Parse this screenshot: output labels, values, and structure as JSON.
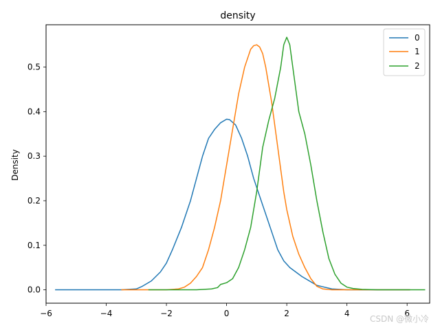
{
  "watermark": "CSDN @微小冷",
  "chart_data": {
    "type": "line",
    "title": "density",
    "xlabel": "",
    "ylabel": "Density",
    "xlim": [
      -6.0,
      6.75
    ],
    "ylim": [
      -0.03,
      0.595
    ],
    "xticks": [
      -6,
      -4,
      -2,
      0,
      2,
      4,
      6
    ],
    "yticks": [
      0.0,
      0.1,
      0.2,
      0.3,
      0.4,
      0.5
    ],
    "grid": false,
    "legend_position": "top-right",
    "series": [
      {
        "name": "0",
        "color": "#1f77b4",
        "x": [
          -5.7,
          -4.0,
          -3.5,
          -3.0,
          -2.8,
          -2.5,
          -2.2,
          -2.0,
          -1.8,
          -1.5,
          -1.2,
          -1.0,
          -0.8,
          -0.6,
          -0.4,
          -0.2,
          0.0,
          0.1,
          0.3,
          0.5,
          0.7,
          0.9,
          1.1,
          1.3,
          1.5,
          1.7,
          1.9,
          2.1,
          2.5,
          3.0,
          3.5,
          4.0,
          4.5,
          5.0,
          6.1
        ],
        "values": [
          0.0,
          0.0,
          0.0,
          0.002,
          0.008,
          0.02,
          0.04,
          0.06,
          0.09,
          0.14,
          0.2,
          0.25,
          0.3,
          0.34,
          0.36,
          0.375,
          0.383,
          0.382,
          0.37,
          0.34,
          0.3,
          0.25,
          0.21,
          0.17,
          0.13,
          0.09,
          0.065,
          0.05,
          0.03,
          0.01,
          0.002,
          0.0,
          0.0,
          0.0,
          0.0
        ]
      },
      {
        "name": "1",
        "color": "#ff7f0e",
        "x": [
          -3.5,
          -2.0,
          -1.6,
          -1.4,
          -1.2,
          -1.0,
          -0.8,
          -0.6,
          -0.4,
          -0.2,
          0.0,
          0.2,
          0.4,
          0.6,
          0.8,
          0.9,
          1.0,
          1.1,
          1.2,
          1.3,
          1.5,
          1.7,
          1.9,
          2.0,
          2.2,
          2.4,
          2.6,
          2.8,
          3.0,
          3.2,
          3.5,
          4.0,
          4.5,
          6.1
        ],
        "values": [
          0.0,
          0.0,
          0.002,
          0.006,
          0.015,
          0.03,
          0.05,
          0.09,
          0.14,
          0.2,
          0.28,
          0.36,
          0.44,
          0.5,
          0.54,
          0.548,
          0.55,
          0.545,
          0.53,
          0.5,
          0.42,
          0.32,
          0.22,
          0.18,
          0.12,
          0.08,
          0.05,
          0.025,
          0.008,
          0.002,
          0.0,
          0.0,
          0.0,
          0.0
        ]
      },
      {
        "name": "2",
        "color": "#2ca02c",
        "x": [
          -2.6,
          -1.0,
          -0.5,
          -0.3,
          -0.2,
          0.0,
          0.2,
          0.4,
          0.6,
          0.8,
          1.0,
          1.2,
          1.4,
          1.6,
          1.8,
          1.9,
          2.0,
          2.1,
          2.2,
          2.3,
          2.4,
          2.6,
          2.8,
          3.0,
          3.2,
          3.4,
          3.6,
          3.8,
          4.0,
          4.2,
          4.5,
          5.0,
          5.5,
          6.6
        ],
        "values": [
          0.0,
          0.0,
          0.002,
          0.005,
          0.012,
          0.016,
          0.025,
          0.05,
          0.09,
          0.14,
          0.22,
          0.32,
          0.38,
          0.43,
          0.5,
          0.55,
          0.567,
          0.55,
          0.5,
          0.45,
          0.4,
          0.35,
          0.28,
          0.2,
          0.13,
          0.07,
          0.035,
          0.015,
          0.006,
          0.003,
          0.001,
          0.0,
          0.0,
          0.0
        ]
      }
    ]
  }
}
